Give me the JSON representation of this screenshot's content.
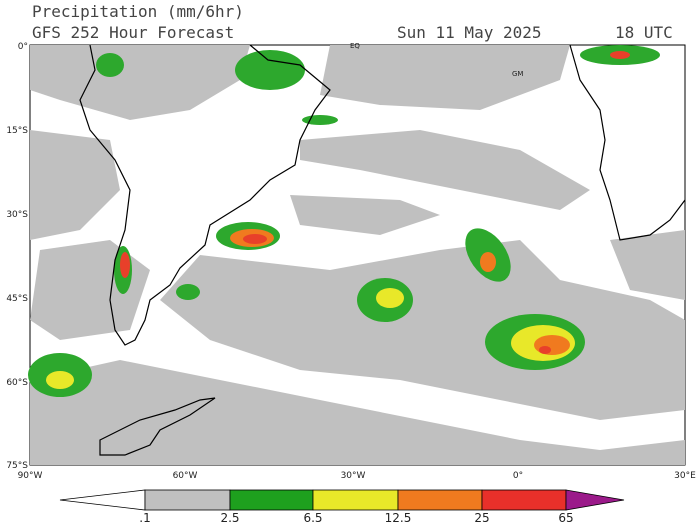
{
  "header": {
    "title": "Precipitation (mm/6hr)",
    "subtitle": "GFS 252 Hour Forecast",
    "date": "Sun 11 May 2025",
    "time": "18 UTC"
  },
  "map": {
    "lat_labels": [
      "0°",
      "15°S",
      "30°S",
      "45°S",
      "60°S",
      "75°S"
    ],
    "lon_labels": [
      "90°W",
      "60°W",
      "30°W",
      "0°",
      "30°E"
    ],
    "markers": [
      "EQ",
      "GM"
    ]
  },
  "colorbar": {
    "labels": [
      ".1",
      "2.5",
      "6.5",
      "12.5",
      "25",
      "65"
    ]
  }
}
